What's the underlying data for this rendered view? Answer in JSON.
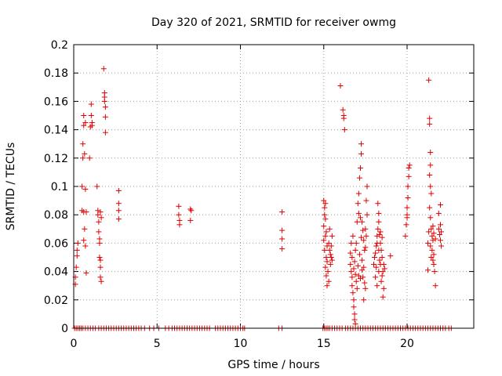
{
  "chart_data": {
    "type": "scatter",
    "title": "Day 320 of 2021, SRMTID for receiver owmg",
    "xlabel": "GPS time / hours",
    "ylabel": "SRMTID / TECUs",
    "xlim": [
      0,
      24
    ],
    "ylim": [
      0,
      0.2
    ],
    "grid": true,
    "x_ticks": [
      0,
      5,
      10,
      15,
      20
    ],
    "y_ticks": [
      0,
      0.02,
      0.04,
      0.06,
      0.08,
      0.1,
      0.12,
      0.14,
      0.16,
      0.18,
      0.2
    ],
    "x_tick_labels": [
      "0",
      "5",
      "10",
      "15",
      "20"
    ],
    "y_tick_labels": [
      "0",
      "0.02",
      "0.04",
      "0.06",
      "0.08",
      "0.1",
      "0.12",
      "0.14",
      "0.16",
      "0.18",
      "0.2"
    ],
    "marker": "+",
    "color": "#e00000",
    "series": [
      {
        "name": "SRMTID",
        "points": [
          [
            0.1,
            0.031
          ],
          [
            0.1,
            0.036
          ],
          [
            0.15,
            0.043
          ],
          [
            0.2,
            0.051
          ],
          [
            0.2,
            0.055
          ],
          [
            0.25,
            0.06
          ],
          [
            0.5,
            0.083
          ],
          [
            0.5,
            0.1
          ],
          [
            0.55,
            0.12
          ],
          [
            0.55,
            0.13
          ],
          [
            0.6,
            0.143
          ],
          [
            0.6,
            0.15
          ],
          [
            0.6,
            0.062
          ],
          [
            0.6,
            0.082
          ],
          [
            0.65,
            0.123
          ],
          [
            0.65,
            0.07
          ],
          [
            0.7,
            0.145
          ],
          [
            0.7,
            0.098
          ],
          [
            0.7,
            0.058
          ],
          [
            0.75,
            0.039
          ],
          [
            0.75,
            0.082
          ],
          [
            0.95,
            0.12
          ],
          [
            1.0,
            0.142
          ],
          [
            1.05,
            0.15
          ],
          [
            1.05,
            0.158
          ],
          [
            1.1,
            0.145
          ],
          [
            1.1,
            0.143
          ],
          [
            1.4,
            0.1
          ],
          [
            1.45,
            0.083
          ],
          [
            1.45,
            0.08
          ],
          [
            1.5,
            0.075
          ],
          [
            1.5,
            0.068
          ],
          [
            1.55,
            0.06
          ],
          [
            1.55,
            0.063
          ],
          [
            1.55,
            0.05
          ],
          [
            1.6,
            0.048
          ],
          [
            1.6,
            0.043
          ],
          [
            1.6,
            0.036
          ],
          [
            1.65,
            0.033
          ],
          [
            1.6,
            0.082
          ],
          [
            1.65,
            0.078
          ],
          [
            1.8,
            0.183
          ],
          [
            1.85,
            0.166
          ],
          [
            1.85,
            0.16
          ],
          [
            1.9,
            0.156
          ],
          [
            1.9,
            0.149
          ],
          [
            1.9,
            0.138
          ],
          [
            1.85,
            0.163
          ],
          [
            2.7,
            0.097
          ],
          [
            2.7,
            0.088
          ],
          [
            2.7,
            0.083
          ],
          [
            2.7,
            0.077
          ],
          [
            6.3,
            0.086
          ],
          [
            6.3,
            0.08
          ],
          [
            6.35,
            0.076
          ],
          [
            6.35,
            0.073
          ],
          [
            7.0,
            0.084
          ],
          [
            7.05,
            0.083
          ],
          [
            7.0,
            0.076
          ],
          [
            12.5,
            0.082
          ],
          [
            12.5,
            0.069
          ],
          [
            12.5,
            0.063
          ],
          [
            12.5,
            0.056
          ],
          [
            15.0,
            0.09
          ],
          [
            15.05,
            0.085
          ],
          [
            15.1,
            0.088
          ],
          [
            15.05,
            0.08
          ],
          [
            15.1,
            0.077
          ],
          [
            15.0,
            0.072
          ],
          [
            15.15,
            0.068
          ],
          [
            15.1,
            0.065
          ],
          [
            15.0,
            0.062
          ],
          [
            15.2,
            0.058
          ],
          [
            15.05,
            0.055
          ],
          [
            15.15,
            0.05
          ],
          [
            15.2,
            0.047
          ],
          [
            15.1,
            0.043
          ],
          [
            15.25,
            0.04
          ],
          [
            15.15,
            0.037
          ],
          [
            15.3,
            0.033
          ],
          [
            15.2,
            0.03
          ],
          [
            15.3,
            0.06
          ],
          [
            15.35,
            0.055
          ],
          [
            15.4,
            0.052
          ],
          [
            15.45,
            0.05
          ],
          [
            15.5,
            0.048
          ],
          [
            15.4,
            0.045
          ],
          [
            15.5,
            0.065
          ],
          [
            15.35,
            0.07
          ],
          [
            15.45,
            0.058
          ],
          [
            16.0,
            0.171
          ],
          [
            16.15,
            0.154
          ],
          [
            16.2,
            0.15
          ],
          [
            16.2,
            0.148
          ],
          [
            16.25,
            0.14
          ],
          [
            16.6,
            0.053
          ],
          [
            16.6,
            0.045
          ],
          [
            16.65,
            0.04
          ],
          [
            16.7,
            0.036
          ],
          [
            16.7,
            0.03
          ],
          [
            16.75,
            0.025
          ],
          [
            16.8,
            0.02
          ],
          [
            16.8,
            0.015
          ],
          [
            16.85,
            0.01
          ],
          [
            16.85,
            0.006
          ],
          [
            16.9,
            0.003
          ],
          [
            16.65,
            0.06
          ],
          [
            16.75,
            0.065
          ],
          [
            16.7,
            0.05
          ],
          [
            16.8,
            0.042
          ],
          [
            16.85,
            0.047
          ],
          [
            16.9,
            0.038
          ],
          [
            16.95,
            0.033
          ],
          [
            17.0,
            0.028
          ],
          [
            16.9,
            0.055
          ],
          [
            16.95,
            0.06
          ],
          [
            17.0,
            0.075
          ],
          [
            17.1,
            0.081
          ],
          [
            17.05,
            0.088
          ],
          [
            17.1,
            0.095
          ],
          [
            17.15,
            0.106
          ],
          [
            17.2,
            0.113
          ],
          [
            17.25,
            0.123
          ],
          [
            17.25,
            0.13
          ],
          [
            17.3,
            0.075
          ],
          [
            17.35,
            0.069
          ],
          [
            17.4,
            0.062
          ],
          [
            17.45,
            0.055
          ],
          [
            17.3,
            0.048
          ],
          [
            17.4,
            0.043
          ],
          [
            17.35,
            0.036
          ],
          [
            17.45,
            0.032
          ],
          [
            17.5,
            0.028
          ],
          [
            17.4,
            0.02
          ],
          [
            17.55,
            0.065
          ],
          [
            17.5,
            0.07
          ],
          [
            17.6,
            0.08
          ],
          [
            17.6,
            0.1
          ],
          [
            17.55,
            0.09
          ],
          [
            17.5,
            0.057
          ],
          [
            17.2,
            0.078
          ],
          [
            17.25,
            0.064
          ],
          [
            17.15,
            0.052
          ],
          [
            17.05,
            0.044
          ],
          [
            17.1,
            0.037
          ],
          [
            17.2,
            0.035
          ],
          [
            17.3,
            0.041
          ],
          [
            18.0,
            0.045
          ],
          [
            18.05,
            0.05
          ],
          [
            18.1,
            0.053
          ],
          [
            18.15,
            0.058
          ],
          [
            18.2,
            0.06
          ],
          [
            18.2,
            0.065
          ],
          [
            18.25,
            0.07
          ],
          [
            18.3,
            0.075
          ],
          [
            18.25,
            0.088
          ],
          [
            18.3,
            0.081
          ],
          [
            18.35,
            0.066
          ],
          [
            18.4,
            0.06
          ],
          [
            18.45,
            0.055
          ],
          [
            18.5,
            0.05
          ],
          [
            18.4,
            0.045
          ],
          [
            18.55,
            0.04
          ],
          [
            18.5,
            0.037
          ],
          [
            18.45,
            0.033
          ],
          [
            18.6,
            0.028
          ],
          [
            18.55,
            0.022
          ],
          [
            18.2,
            0.03
          ],
          [
            18.1,
            0.036
          ],
          [
            18.3,
            0.04
          ],
          [
            18.35,
            0.048
          ],
          [
            18.6,
            0.045
          ],
          [
            18.65,
            0.042
          ],
          [
            18.5,
            0.064
          ],
          [
            18.4,
            0.068
          ],
          [
            18.3,
            0.055
          ],
          [
            18.15,
            0.043
          ],
          [
            19.0,
            0.051
          ],
          [
            19.9,
            0.065
          ],
          [
            19.95,
            0.073
          ],
          [
            20.0,
            0.08
          ],
          [
            20.0,
            0.085
          ],
          [
            20.05,
            0.092
          ],
          [
            20.05,
            0.1
          ],
          [
            20.1,
            0.107
          ],
          [
            20.1,
            0.113
          ],
          [
            20.15,
            0.115
          ],
          [
            20.0,
            0.078
          ],
          [
            21.3,
            0.175
          ],
          [
            21.35,
            0.148
          ],
          [
            21.35,
            0.144
          ],
          [
            21.4,
            0.124
          ],
          [
            21.4,
            0.115
          ],
          [
            21.35,
            0.108
          ],
          [
            21.4,
            0.1
          ],
          [
            21.45,
            0.095
          ],
          [
            21.35,
            0.085
          ],
          [
            21.4,
            0.078
          ],
          [
            21.45,
            0.07
          ],
          [
            21.5,
            0.065
          ],
          [
            21.55,
            0.062
          ],
          [
            21.4,
            0.058
          ],
          [
            21.5,
            0.055
          ],
          [
            21.6,
            0.052
          ],
          [
            21.45,
            0.05
          ],
          [
            21.55,
            0.048
          ],
          [
            21.6,
            0.045
          ],
          [
            21.25,
            0.041
          ],
          [
            21.65,
            0.04
          ],
          [
            21.7,
            0.03
          ],
          [
            21.6,
            0.067
          ],
          [
            21.55,
            0.072
          ],
          [
            21.7,
            0.063
          ],
          [
            21.3,
            0.068
          ],
          [
            21.25,
            0.06
          ],
          [
            22.0,
            0.087
          ],
          [
            21.9,
            0.081
          ],
          [
            22.0,
            0.073
          ],
          [
            22.05,
            0.068
          ],
          [
            21.95,
            0.066
          ],
          [
            22.0,
            0.062
          ],
          [
            22.05,
            0.058
          ],
          [
            21.9,
            0.07
          ]
        ],
        "zero_points": [
          0.05,
          0.15,
          0.25,
          0.35,
          0.45,
          0.55,
          0.7,
          0.85,
          1.0,
          1.15,
          1.3,
          1.5,
          1.65,
          1.8,
          1.95,
          2.1,
          2.25,
          2.4,
          2.55,
          2.7,
          2.85,
          3.0,
          3.15,
          3.3,
          3.45,
          3.6,
          3.75,
          3.9,
          4.05,
          4.25,
          4.55,
          4.8,
          5.1,
          5.5,
          5.7,
          5.9,
          6.05,
          6.2,
          6.35,
          6.5,
          6.65,
          6.8,
          6.95,
          7.1,
          7.25,
          7.4,
          7.55,
          7.7,
          7.85,
          8.0,
          8.15,
          8.5,
          8.65,
          8.8,
          8.95,
          9.1,
          9.25,
          9.4,
          9.55,
          9.7,
          9.85,
          10.0,
          10.15,
          10.25,
          12.3,
          12.5,
          14.95,
          15.05,
          15.15,
          15.25,
          15.35,
          15.5,
          15.65,
          15.8,
          15.95,
          16.1,
          16.3,
          16.45,
          16.6,
          16.75,
          16.9,
          17.05,
          17.2,
          17.35,
          17.5,
          17.65,
          17.8,
          17.95,
          18.1,
          18.25,
          18.4,
          18.55,
          18.7,
          18.85,
          19.0,
          19.15,
          19.3,
          19.45,
          19.6,
          19.75,
          19.9,
          20.05,
          20.2,
          20.35,
          20.5,
          20.65,
          20.8,
          20.95,
          21.1,
          21.25,
          21.4,
          21.55,
          21.7,
          21.85,
          22.0,
          22.15,
          22.3,
          22.5,
          22.65
        ]
      }
    ]
  }
}
